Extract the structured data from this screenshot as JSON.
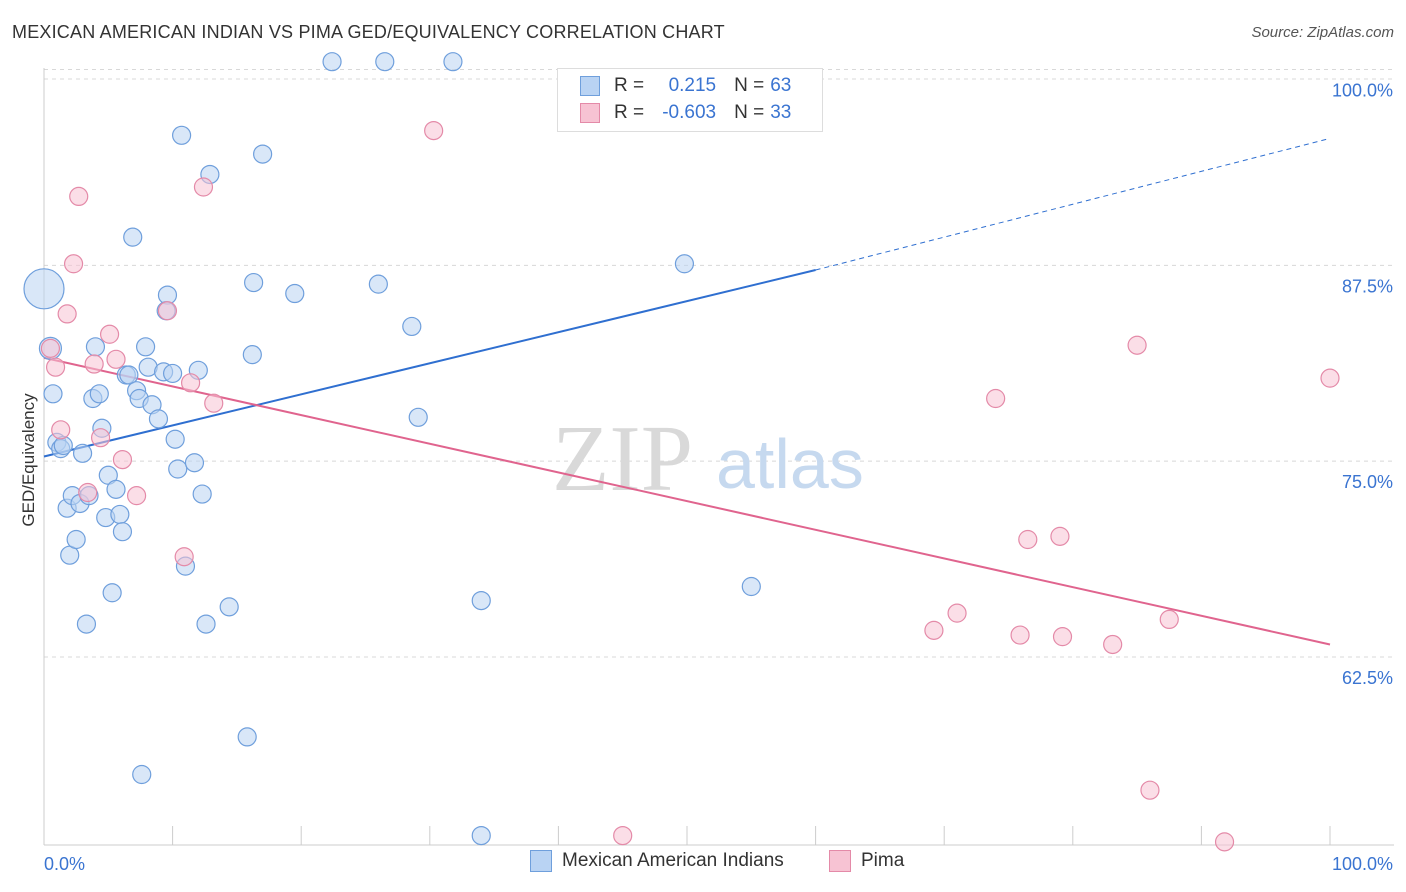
{
  "title": "MEXICAN AMERICAN INDIAN VS PIMA GED/EQUIVALENCY CORRELATION CHART",
  "source": "Source: ZipAtlas.com",
  "watermark": {
    "zip": "ZIP",
    "atlas": "atlas"
  },
  "legend": {
    "rows": [
      {
        "r_label": "R =",
        "r_value": "0.215",
        "n_label": "N =",
        "n_value": "63"
      },
      {
        "r_label": "R =",
        "r_value": "-0.603",
        "n_label": "N =",
        "n_value": "33"
      }
    ]
  },
  "colors": {
    "blue_fill": "#b9d3f3",
    "blue_stroke": "#6f9fdc",
    "blue_line": "#2f6fd0",
    "pink_fill": "#f7c3d3",
    "pink_stroke": "#e48aa8",
    "pink_line": "#e0648e",
    "tick_label": "#3a74d1",
    "grid": "#d8d8d8"
  },
  "chart_data": {
    "type": "scatter",
    "xlabel": "",
    "ylabel": "GED/Equivalency",
    "xlim": [
      0,
      100
    ],
    "ylim": [
      50.5,
      101.5
    ],
    "x_tick_labels": [
      {
        "v": 0,
        "label": "0.0%"
      },
      {
        "v": 100,
        "label": "100.0%"
      }
    ],
    "y_ticks": [
      {
        "v": 100,
        "label": "100.0%"
      },
      {
        "v": 87.5,
        "label": "87.5%"
      },
      {
        "v": 75,
        "label": "75.0%"
      },
      {
        "v": 62.5,
        "label": "62.5%"
      }
    ],
    "grid": "horizontal dashed",
    "series": [
      {
        "name": "Mexican American Indians",
        "color": "blue",
        "trend": {
          "x0": 0,
          "y0": 75.3,
          "x1": 60,
          "y1": 87.2,
          "dash_to": 100,
          "dash_y": 95.6
        },
        "points": [
          [
            0.0,
            86.0,
            20
          ],
          [
            0.5,
            82.2,
            11
          ],
          [
            0.7,
            79.3,
            9
          ],
          [
            1.0,
            76.2,
            9
          ],
          [
            1.3,
            75.8,
            9
          ],
          [
            1.5,
            76.0,
            9
          ],
          [
            1.8,
            72.0,
            9
          ],
          [
            2.0,
            69.0,
            9
          ],
          [
            2.2,
            72.8,
            9
          ],
          [
            2.5,
            70.0,
            9
          ],
          [
            2.8,
            72.3,
            9
          ],
          [
            3.0,
            75.5,
            9
          ],
          [
            3.3,
            64.6,
            9
          ],
          [
            3.5,
            72.8,
            9
          ],
          [
            3.8,
            79.0,
            9
          ],
          [
            4.0,
            82.3,
            9
          ],
          [
            4.3,
            79.3,
            9
          ],
          [
            4.5,
            77.1,
            9
          ],
          [
            4.8,
            71.4,
            9
          ],
          [
            5.0,
            74.1,
            9
          ],
          [
            5.3,
            66.6,
            9
          ],
          [
            5.6,
            73.2,
            9
          ],
          [
            5.9,
            71.6,
            9
          ],
          [
            6.1,
            70.5,
            9
          ],
          [
            6.4,
            80.5,
            9
          ],
          [
            6.6,
            80.5,
            9
          ],
          [
            6.9,
            89.3,
            9
          ],
          [
            7.2,
            79.5,
            9
          ],
          [
            7.4,
            79.0,
            9
          ],
          [
            7.6,
            55.0,
            9
          ],
          [
            7.9,
            82.3,
            9
          ],
          [
            8.1,
            81.0,
            9
          ],
          [
            8.4,
            78.6,
            9
          ],
          [
            8.9,
            77.7,
            9
          ],
          [
            9.3,
            80.7,
            9
          ],
          [
            9.6,
            85.6,
            9
          ],
          [
            9.5,
            84.6,
            9
          ],
          [
            10.0,
            80.6,
            9
          ],
          [
            10.2,
            76.4,
            9
          ],
          [
            10.4,
            74.5,
            9
          ],
          [
            10.7,
            95.8,
            9
          ],
          [
            11.0,
            68.3,
            9
          ],
          [
            11.7,
            74.9,
            9
          ],
          [
            12.0,
            80.8,
            9
          ],
          [
            12.3,
            72.9,
            9
          ],
          [
            12.6,
            64.6,
            9
          ],
          [
            12.9,
            93.3,
            9
          ],
          [
            14.4,
            65.7,
            9
          ],
          [
            15.8,
            57.4,
            9
          ],
          [
            16.2,
            81.8,
            9
          ],
          [
            16.3,
            86.4,
            9
          ],
          [
            17.0,
            94.6,
            9
          ],
          [
            19.5,
            85.7,
            9
          ],
          [
            22.4,
            100.5,
            9
          ],
          [
            26.0,
            86.3,
            9
          ],
          [
            26.5,
            100.5,
            9
          ],
          [
            28.6,
            83.6,
            9
          ],
          [
            29.1,
            77.8,
            9
          ],
          [
            31.8,
            100.5,
            9
          ],
          [
            34.0,
            51.1,
            9
          ],
          [
            34.0,
            66.1,
            9
          ],
          [
            49.8,
            87.6,
            9
          ],
          [
            55.0,
            67.0,
            9
          ]
        ]
      },
      {
        "name": "Pima",
        "color": "pink",
        "trend": {
          "x0": 0,
          "y0": 81.6,
          "x1": 100,
          "y1": 63.3
        },
        "points": [
          [
            0.5,
            82.2,
            9
          ],
          [
            0.9,
            81.0,
            9
          ],
          [
            1.3,
            77.0,
            9
          ],
          [
            1.8,
            84.4,
            9
          ],
          [
            2.3,
            87.6,
            9
          ],
          [
            2.7,
            91.9,
            9
          ],
          [
            3.4,
            73.0,
            9
          ],
          [
            3.9,
            81.2,
            9
          ],
          [
            4.4,
            76.5,
            9
          ],
          [
            5.1,
            83.1,
            9
          ],
          [
            5.6,
            81.5,
            9
          ],
          [
            6.1,
            75.1,
            9
          ],
          [
            7.2,
            72.8,
            9
          ],
          [
            9.6,
            84.6,
            9
          ],
          [
            10.9,
            68.9,
            9
          ],
          [
            11.4,
            80.0,
            9
          ],
          [
            12.4,
            92.5,
            9
          ],
          [
            13.2,
            78.7,
            9
          ],
          [
            30.3,
            96.1,
            9
          ],
          [
            45.0,
            51.1,
            9
          ],
          [
            69.2,
            64.2,
            9
          ],
          [
            71.0,
            65.3,
            9
          ],
          [
            74.0,
            79.0,
            9
          ],
          [
            75.9,
            63.9,
            9
          ],
          [
            76.5,
            70.0,
            9
          ],
          [
            79.0,
            70.2,
            9
          ],
          [
            79.2,
            63.8,
            9
          ],
          [
            83.1,
            63.3,
            9
          ],
          [
            85.0,
            82.4,
            9
          ],
          [
            86.0,
            54.0,
            9
          ],
          [
            87.5,
            64.9,
            9
          ],
          [
            91.8,
            50.7,
            9
          ],
          [
            100.0,
            80.3,
            9
          ]
        ]
      }
    ]
  }
}
